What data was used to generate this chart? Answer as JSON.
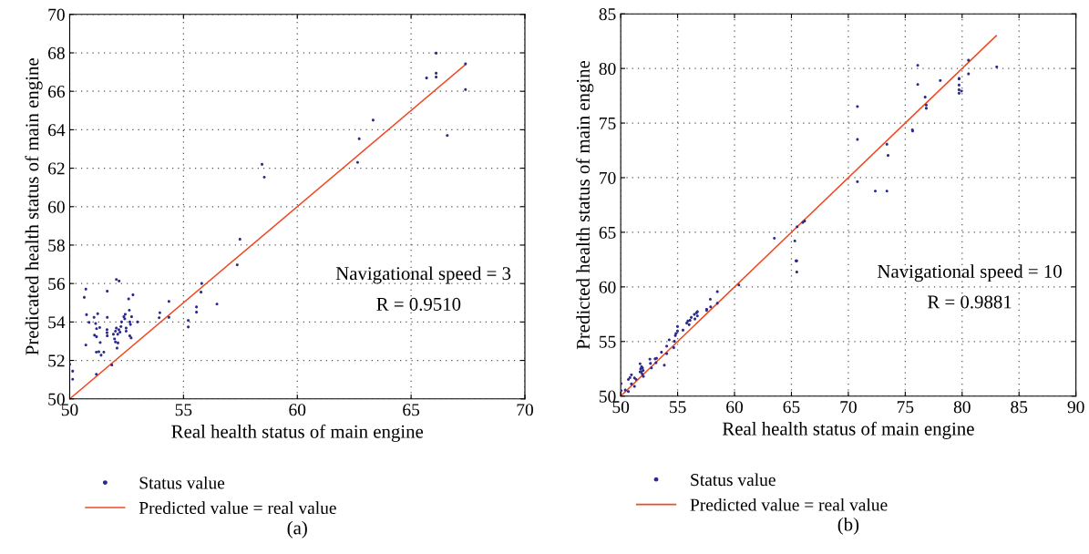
{
  "chart_data": [
    {
      "type": "scatter",
      "xlabel": "Real health status of main engine",
      "ylabel": "Predicated health status of main engine",
      "xlim": [
        50,
        70
      ],
      "ylim": [
        50,
        70
      ],
      "xticks": [
        50,
        55,
        60,
        65,
        70
      ],
      "yticks": [
        50,
        52,
        54,
        56,
        58,
        60,
        62,
        64,
        66,
        68,
        70
      ],
      "grid": true,
      "legend": "bottom",
      "annotations": [
        "Navigational speed = 3",
        "R = 0.9510",
        "(a)"
      ],
      "series": [
        {
          "name": "Status value",
          "marker": "circle",
          "color": "#2b2b8f",
          "x": [
            50.0,
            50.13,
            50.13,
            50.64,
            50.71,
            50.74,
            50.85,
            50.71,
            51.07,
            51.23,
            51.14,
            51.18,
            51.09,
            51.18,
            51.32,
            51.34,
            51.17,
            51.28,
            51.38,
            51.5,
            51.17,
            51.65,
            51.65,
            51.64,
            51.64,
            51.65,
            51.85,
            52.05,
            52.17,
            51.92,
            52.01,
            52.05,
            51.97,
            52.01,
            52.08,
            52.11,
            52.16,
            52.21,
            52.25,
            52.28,
            52.12,
            52.44,
            52.42,
            52.48,
            52.48,
            52.59,
            52.62,
            52.64,
            52.67,
            52.64,
            52.7,
            52.72,
            52.78,
            52.98,
            52.38,
            53.96,
            53.93,
            54.36,
            54.36,
            55.21,
            55.21,
            55.57,
            55.57,
            55.77,
            55.8,
            56.47,
            57.36,
            57.48,
            58.45,
            58.55,
            62.65,
            62.72,
            63.33,
            65.68,
            66.1,
            66.1,
            66.1,
            66.59,
            67.39,
            67.39
          ],
          "values": [
            51.8,
            51.44,
            51.02,
            55.28,
            55.71,
            54.38,
            53.98,
            52.8,
            54.24,
            54.43,
            53.92,
            53.65,
            53.31,
            53.23,
            53.71,
            52.93,
            52.43,
            52.45,
            52.27,
            52.43,
            51.28,
            54.24,
            55.6,
            53.6,
            53.44,
            53.28,
            51.76,
            56.21,
            56.13,
            53.36,
            53.52,
            53.68,
            53.12,
            52.96,
            52.64,
            53.36,
            53.6,
            53.47,
            53.76,
            54.0,
            52.91,
            54.4,
            54.16,
            53.68,
            53.52,
            55.2,
            54.61,
            54.0,
            53.87,
            53.28,
            53.17,
            54.27,
            55.41,
            54.0,
            54.27,
            54.48,
            54.22,
            55.07,
            54.24,
            54.08,
            53.74,
            54.78,
            54.51,
            55.55,
            56.0,
            54.93,
            56.97,
            58.3,
            62.2,
            61.53,
            62.3,
            63.53,
            64.5,
            66.69,
            67.98,
            66.94,
            66.74,
            63.7,
            67.43,
            66.09
          ]
        },
        {
          "name": "Predicted value = real value",
          "type": "line",
          "color": "#f04a24",
          "x": [
            50,
            67.4
          ],
          "values": [
            50,
            67.4
          ]
        }
      ]
    },
    {
      "type": "scatter",
      "xlabel": "Real health status of main engine",
      "ylabel": "Predicted health status of main engine",
      "xlim": [
        50,
        90
      ],
      "ylim": [
        50,
        85
      ],
      "xticks": [
        50,
        55,
        60,
        65,
        70,
        75,
        80,
        85,
        90
      ],
      "yticks": [
        50,
        55,
        60,
        65,
        70,
        75,
        80,
        85
      ],
      "grid": true,
      "legend": "bottom",
      "annotations": [
        "Navigational speed = 10",
        "R = 0.9881",
        "(b)"
      ],
      "series": [
        {
          "name": "Status value",
          "marker": "circle",
          "color": "#2b2b8f",
          "x": [
            50.03,
            50.03,
            50.4,
            50.67,
            50.67,
            50.81,
            50.94,
            50.94,
            51.21,
            51.21,
            51.35,
            51.7,
            51.75,
            51.81,
            51.83,
            51.89,
            51.97,
            51.91,
            51.99,
            51.7,
            52.56,
            52.61,
            52.7,
            53.02,
            53.15,
            53.1,
            53.58,
            53.83,
            54.04,
            54.04,
            54.26,
            54.66,
            54.72,
            54.8,
            54.85,
            54.99,
            54.99,
            55.47,
            55.8,
            55.9,
            56.01,
            56.09,
            56.2,
            56.47,
            56.52,
            56.66,
            56.74,
            56.74,
            57.55,
            57.55,
            57.9,
            57.87,
            58.49,
            58.49,
            60.38,
            63.5,
            65.3,
            65.4,
            65.47,
            65.47,
            65.5,
            66.0,
            66.16,
            70.8,
            70.8,
            70.8,
            72.37,
            73.39,
            73.39,
            73.49,
            75.63,
            75.65,
            76.1,
            76.1,
            76.75,
            76.85,
            76.85,
            78.08,
            79.73,
            79.73,
            79.73,
            79.73,
            79.95,
            79.73,
            80.56,
            80.56,
            83.04
          ],
          "values": [
            51.14,
            50.5,
            50.55,
            50.42,
            51.52,
            51.69,
            51.94,
            51.11,
            51.66,
            50.89,
            51.52,
            52.96,
            52.49,
            52.22,
            52.69,
            52.02,
            52.35,
            52.58,
            51.8,
            52.22,
            53.38,
            52.99,
            52.58,
            53.41,
            53.46,
            53.05,
            54.02,
            52.83,
            54.57,
            53.88,
            55.15,
            54.43,
            55.01,
            55.54,
            55.73,
            56.37,
            55.96,
            56.04,
            56.68,
            56.87,
            56.54,
            56.93,
            57.2,
            57.48,
            57.06,
            57.62,
            57.73,
            57.34,
            57.84,
            57.95,
            58.17,
            58.86,
            59.56,
            58.5,
            60.17,
            64.45,
            64.2,
            62.38,
            62.38,
            61.36,
            65.5,
            65.9,
            66.03,
            76.51,
            73.5,
            69.63,
            68.77,
            68.77,
            73.06,
            72.03,
            74.38,
            74.27,
            80.28,
            78.53,
            77.37,
            76.65,
            76.35,
            78.89,
            79.09,
            79.03,
            78.48,
            78.04,
            77.93,
            77.73,
            80.75,
            79.5,
            80.14
          ]
        },
        {
          "name": "Predicted value = real value",
          "type": "line",
          "color": "#f04a24",
          "x": [
            50,
            83
          ],
          "values": [
            50,
            83
          ]
        }
      ]
    }
  ]
}
